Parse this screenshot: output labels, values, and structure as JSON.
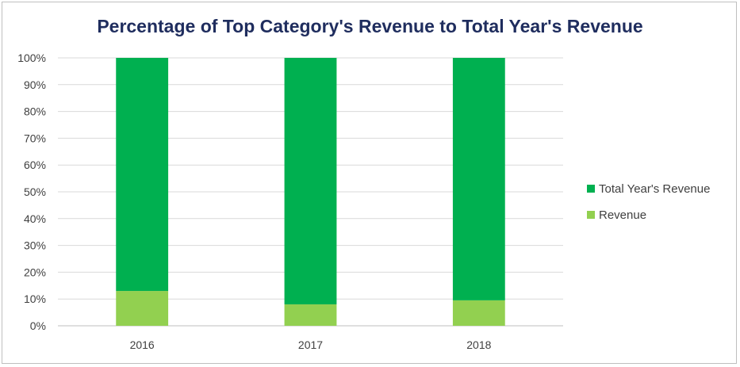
{
  "chart_data": {
    "type": "bar",
    "stacked": true,
    "percent_stacked": true,
    "title": "Percentage of Top Category's Revenue to Total Year's Revenue",
    "categories": [
      "2016",
      "2017",
      "2018"
    ],
    "series": [
      {
        "name": "Revenue",
        "values": [
          13,
          8,
          9.5
        ],
        "color": "#92d050"
      },
      {
        "name": "Total Year's Revenue",
        "values": [
          87,
          92,
          90.5
        ],
        "color": "#00b050"
      }
    ],
    "y_ticks": [
      "0%",
      "10%",
      "20%",
      "30%",
      "40%",
      "50%",
      "60%",
      "70%",
      "80%",
      "90%",
      "100%"
    ],
    "ylim": [
      0,
      100
    ],
    "grid": true,
    "legend_position": "right",
    "legend": [
      {
        "name": "Total Year's Revenue",
        "color": "#00b050"
      },
      {
        "name": "Revenue",
        "color": "#92d050"
      }
    ]
  }
}
